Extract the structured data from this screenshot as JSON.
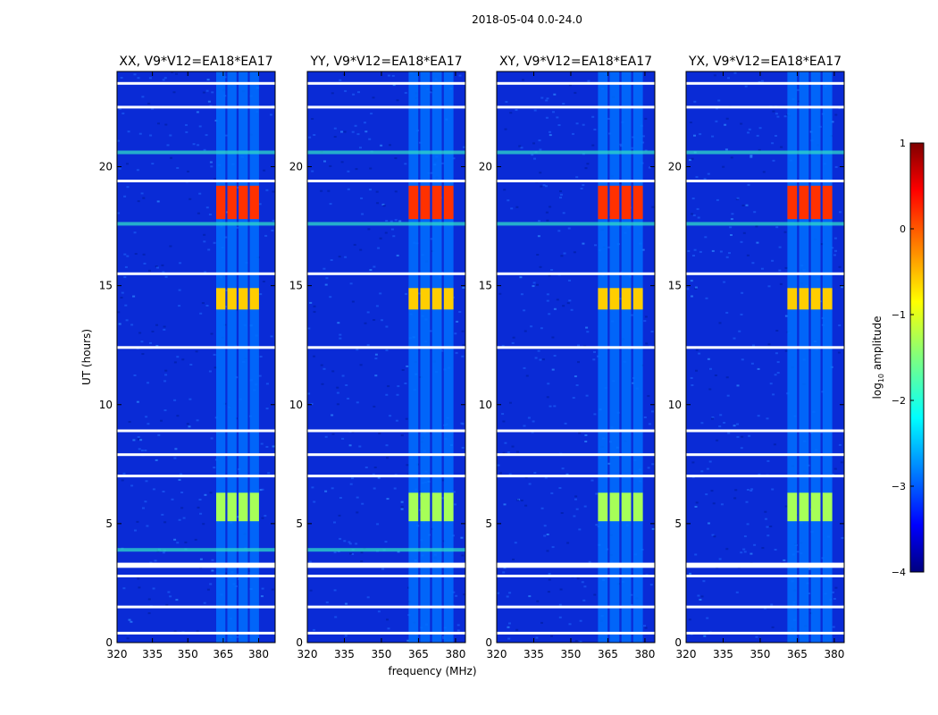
{
  "figure": {
    "title": "2018-05-04 0.0-24.0"
  },
  "colorbar": {
    "label_prefix": "log",
    "label_sub": "10",
    "label_suffix": " amplitude",
    "range": [
      -4,
      1
    ],
    "ticks": [
      1,
      0,
      -1,
      -2,
      -3,
      -4
    ],
    "tick_labels": [
      "1",
      "0",
      "−1",
      "−2",
      "−3",
      "−4"
    ],
    "colormap": "jet"
  },
  "chart_data": [
    {
      "type": "heatmap",
      "title": "XX, V9*V12=EA18*EA17",
      "xlabel": "",
      "ylabel": "UT (hours)",
      "xlim": [
        320,
        387
      ],
      "ylim": [
        0,
        24
      ],
      "x_ticks": [
        320,
        335,
        350,
        365,
        380
      ],
      "x_tick_labels": [
        "320",
        "335",
        "350",
        "365",
        "380"
      ],
      "y_ticks": [
        0,
        5,
        10,
        15,
        20
      ],
      "y_tick_labels": [
        "0",
        "5",
        "10",
        "15",
        "20"
      ],
      "bright_band_MHz": [
        362,
        381
      ],
      "bright_hours": [
        [
          5.1,
          6.3
        ],
        [
          14.0,
          14.9
        ],
        [
          17.8,
          19.2
        ]
      ],
      "rfi_lines_hours": [
        20.6,
        17.6,
        3.9
      ],
      "flagged_hours": [
        0.4,
        1.5,
        2.8,
        3.2,
        3.3,
        7.0,
        7.9,
        8.9,
        12.4,
        15.5,
        19.4,
        22.5,
        23.5
      ]
    },
    {
      "type": "heatmap",
      "title": "YY, V9*V12=EA18*EA17",
      "xlabel": "frequency (MHz)",
      "ylabel": "",
      "xlim": [
        320,
        384
      ],
      "ylim": [
        0,
        24
      ],
      "x_ticks": [
        320,
        335,
        350,
        365,
        380
      ],
      "x_tick_labels": [
        "320",
        "335",
        "350",
        "365",
        "380"
      ],
      "y_ticks": [
        0,
        5,
        10,
        15,
        20
      ],
      "y_tick_labels": [
        "0",
        "5",
        "10",
        "15",
        "20"
      ],
      "bright_band_MHz": [
        361,
        380
      ],
      "bright_hours": [
        [
          5.1,
          6.3
        ],
        [
          14.0,
          14.9
        ],
        [
          17.8,
          19.2
        ]
      ],
      "rfi_lines_hours": [
        20.6,
        17.6,
        3.9
      ],
      "flagged_hours": [
        0.4,
        1.5,
        2.8,
        3.2,
        3.3,
        7.0,
        7.9,
        8.9,
        12.4,
        15.5,
        19.4,
        22.5,
        23.5
      ]
    },
    {
      "type": "heatmap",
      "title": "XY, V9*V12=EA18*EA17",
      "xlabel": "",
      "ylabel": "",
      "xlim": [
        320,
        384
      ],
      "ylim": [
        0,
        24
      ],
      "x_ticks": [
        320,
        335,
        350,
        365,
        380
      ],
      "x_tick_labels": [
        "320",
        "335",
        "350",
        "365",
        "380"
      ],
      "y_ticks": [
        0,
        5,
        10,
        15,
        20
      ],
      "y_tick_labels": [
        "0",
        "5",
        "10",
        "15",
        "20"
      ],
      "bright_band_MHz": [
        361,
        380
      ],
      "bright_hours": [
        [
          5.1,
          6.3
        ],
        [
          14.0,
          14.9
        ],
        [
          17.8,
          19.2
        ]
      ],
      "rfi_lines_hours": [
        20.6,
        17.6
      ],
      "flagged_hours": [
        0.4,
        1.5,
        2.8,
        3.2,
        3.3,
        7.0,
        7.9,
        8.9,
        12.4,
        15.5,
        19.4,
        22.5,
        23.5
      ]
    },
    {
      "type": "heatmap",
      "title": "YX, V9*V12=EA18*EA17",
      "xlabel": "",
      "ylabel": "",
      "xlim": [
        320,
        384
      ],
      "ylim": [
        0,
        24
      ],
      "x_ticks": [
        320,
        335,
        350,
        365,
        380
      ],
      "x_tick_labels": [
        "320",
        "335",
        "350",
        "365",
        "380"
      ],
      "y_ticks": [
        0,
        5,
        10,
        15,
        20
      ],
      "y_tick_labels": [
        "0",
        "5",
        "10",
        "15",
        "20"
      ],
      "bright_band_MHz": [
        361,
        380
      ],
      "bright_hours": [
        [
          5.1,
          6.3
        ],
        [
          14.0,
          14.9
        ],
        [
          17.8,
          19.2
        ]
      ],
      "rfi_lines_hours": [
        20.6,
        17.6
      ],
      "flagged_hours": [
        0.4,
        1.5,
        2.8,
        3.2,
        3.3,
        7.0,
        7.9,
        8.9,
        12.4,
        15.5,
        19.4,
        22.5,
        23.5
      ]
    }
  ]
}
